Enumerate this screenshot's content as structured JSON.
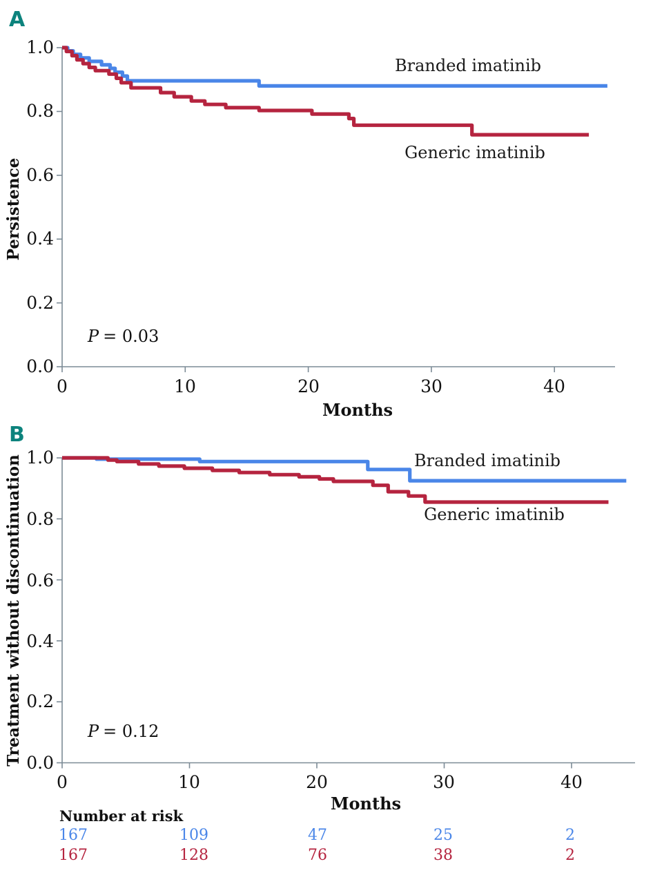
{
  "figure": {
    "panel_a_label": "A",
    "panel_b_label": "B"
  },
  "styles": {
    "panel_label_color": "#0d837d",
    "axis_color": "#7c8b96",
    "text_color": "#111111",
    "branded_blue": "#4a86e8",
    "generic_red": "#b5243f",
    "background": "#ffffff"
  },
  "chart_data": [
    {
      "panel": "A",
      "type": "line",
      "subtype": "kaplan-meier-step",
      "title": "",
      "xlabel": "Months",
      "ylabel": "Persistence",
      "xlim": [
        0,
        45
      ],
      "ylim": [
        0.0,
        1.0
      ],
      "grid": false,
      "x_ticks": [
        "0",
        "10",
        "20",
        "30",
        "40"
      ],
      "y_ticks": [
        "1.0",
        "0.8",
        "0.6",
        "0.4",
        "0.2",
        "0.0"
      ],
      "legend_position": "labels-near-curves",
      "annotation_italic": "P",
      "annotation_value": "= 0.03",
      "series": [
        {
          "name": "Branded imatinib",
          "color": "#4a86e8",
          "points": [
            [
              0,
              1.0
            ],
            [
              0.45,
              0.99
            ],
            [
              0.9,
              0.979
            ],
            [
              1.5,
              0.968
            ],
            [
              2.2,
              0.957
            ],
            [
              3.2,
              0.946
            ],
            [
              3.9,
              0.935
            ],
            [
              4.3,
              0.923
            ],
            [
              4.9,
              0.911
            ],
            [
              5.3,
              0.896
            ],
            [
              16,
              0.88
            ],
            [
              44.3,
              0.88
            ]
          ]
        },
        {
          "name": "Generic imatinib",
          "color": "#b5243f",
          "points": [
            [
              0,
              1.0
            ],
            [
              0.35,
              0.988
            ],
            [
              0.8,
              0.975
            ],
            [
              1.2,
              0.962
            ],
            [
              1.7,
              0.95
            ],
            [
              2.2,
              0.938
            ],
            [
              2.7,
              0.928
            ],
            [
              3.8,
              0.917
            ],
            [
              4.4,
              0.904
            ],
            [
              4.8,
              0.89
            ],
            [
              5.6,
              0.874
            ],
            [
              8.0,
              0.859
            ],
            [
              9.1,
              0.846
            ],
            [
              10.5,
              0.833
            ],
            [
              11.6,
              0.822
            ],
            [
              13.3,
              0.812
            ],
            [
              16.0,
              0.803
            ],
            [
              20.3,
              0.792
            ],
            [
              23.3,
              0.778
            ],
            [
              23.7,
              0.757
            ],
            [
              33.3,
              0.727
            ],
            [
              42.8,
              0.727
            ]
          ]
        }
      ]
    },
    {
      "panel": "B",
      "type": "line",
      "subtype": "kaplan-meier-step",
      "title": "",
      "xlabel": "Months",
      "ylabel": "Treatment without discontinuation",
      "xlim": [
        0,
        45
      ],
      "ylim": [
        0.0,
        1.0
      ],
      "grid": false,
      "x_ticks": [
        "0",
        "10",
        "20",
        "30",
        "40"
      ],
      "y_ticks": [
        "1.0",
        "0.8",
        "0.6",
        "0.4",
        "0.2",
        "0.0"
      ],
      "legend_position": "labels-near-curves",
      "annotation_italic": "P",
      "annotation_value": "= 0.12",
      "series": [
        {
          "name": "Branded imatinib",
          "color": "#4a86e8",
          "points": [
            [
              0,
              1.0
            ],
            [
              2.7,
              0.996
            ],
            [
              10.8,
              0.988
            ],
            [
              24.0,
              0.962
            ],
            [
              27.3,
              0.925
            ],
            [
              44.3,
              0.925
            ]
          ]
        },
        {
          "name": "Generic imatinib",
          "color": "#b5243f",
          "points": [
            [
              0,
              1.0
            ],
            [
              3.6,
              0.993
            ],
            [
              4.3,
              0.988
            ],
            [
              6.0,
              0.98
            ],
            [
              7.6,
              0.973
            ],
            [
              9.6,
              0.966
            ],
            [
              11.8,
              0.959
            ],
            [
              13.9,
              0.952
            ],
            [
              16.3,
              0.945
            ],
            [
              18.6,
              0.938
            ],
            [
              20.2,
              0.931
            ],
            [
              21.3,
              0.923
            ],
            [
              24.4,
              0.91
            ],
            [
              25.6,
              0.889
            ],
            [
              27.2,
              0.875
            ],
            [
              28.5,
              0.855
            ],
            [
              42.9,
              0.855
            ]
          ]
        }
      ],
      "risk_table": {
        "title": "Number at risk",
        "months": [
          0,
          10,
          20,
          30,
          40
        ],
        "rows": [
          {
            "name": "Branded imatinib",
            "color": "#4a86e8",
            "values": [
              "167",
              "109",
              "47",
              "25",
              "2"
            ]
          },
          {
            "name": "Generic imatinib",
            "color": "#b5243f",
            "values": [
              "167",
              "128",
              "76",
              "38",
              "2"
            ]
          }
        ]
      }
    }
  ]
}
